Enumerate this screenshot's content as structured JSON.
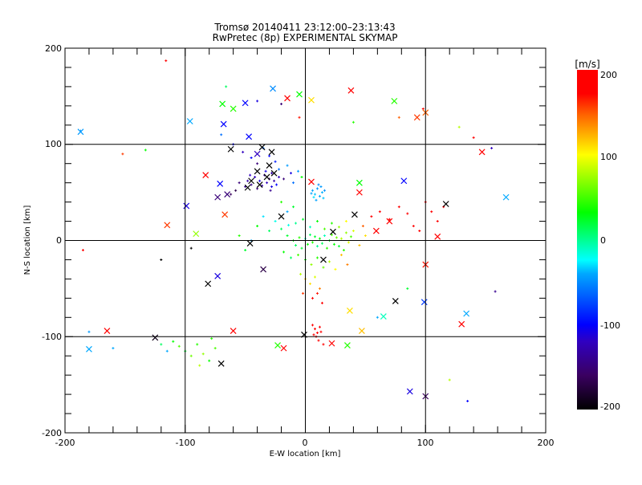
{
  "chart_data": {
    "type": "scatter",
    "title": "Tromsø 20140411 23:12:00–23:13:43",
    "subtitle": "RwPretec (8p) EXPERIMENTAL SKYMAP",
    "xlabel": "E-W location [km]",
    "ylabel": "N-S location [km]",
    "xlim": [
      -200,
      200
    ],
    "ylim": [
      -200,
      200
    ],
    "xticks": [
      "-200",
      "-100",
      "0",
      "100",
      "200"
    ],
    "yticks": [
      "-200",
      "-100",
      "0",
      "100",
      "200"
    ],
    "grid": true,
    "colorbar": {
      "label": "[m/s]",
      "range": [
        -200,
        200
      ],
      "ticks": [
        "200",
        "100",
        "0",
        "-100",
        "-200"
      ]
    },
    "series": [
      {
        "name": "plus",
        "points": [
          [
            -116,
            187,
            200
          ],
          [
            -187,
            114,
            -45
          ],
          [
            -152,
            90,
            160
          ],
          [
            -133,
            94,
            30
          ],
          [
            -66,
            160,
            10
          ],
          [
            -40,
            145,
            -110
          ],
          [
            -20,
            142,
            -150
          ],
          [
            -5,
            128,
            170
          ],
          [
            40,
            123,
            40
          ],
          [
            78,
            128,
            150
          ],
          [
            98,
            137,
            190
          ],
          [
            128,
            118,
            80
          ],
          [
            140,
            107,
            200
          ],
          [
            155,
            96,
            -120
          ],
          [
            -70,
            110,
            -60
          ],
          [
            -60,
            100,
            -100
          ],
          [
            -52,
            92,
            -120
          ],
          [
            -45,
            86,
            -100
          ],
          [
            -40,
            80,
            -150
          ],
          [
            -35,
            96,
            -60
          ],
          [
            -30,
            88,
            -100
          ],
          [
            -28,
            70,
            -130
          ],
          [
            -25,
            82,
            -90
          ],
          [
            -22,
            74,
            -60
          ],
          [
            -18,
            64,
            -150
          ],
          [
            -15,
            78,
            -45
          ],
          [
            -12,
            70,
            -110
          ],
          [
            -10,
            60,
            -60
          ],
          [
            -6,
            72,
            -45
          ],
          [
            -3,
            66,
            30
          ],
          [
            -48,
            62,
            -130
          ],
          [
            -45,
            58,
            -140
          ],
          [
            -42,
            66,
            -120
          ],
          [
            -40,
            54,
            -150
          ],
          [
            -38,
            62,
            -110
          ],
          [
            -36,
            57,
            -130
          ],
          [
            -34,
            68,
            -140
          ],
          [
            -32,
            60,
            -120
          ],
          [
            -30,
            64,
            -150
          ],
          [
            -28,
            56,
            -110
          ],
          [
            -26,
            62,
            -130
          ],
          [
            -24,
            58,
            -100
          ],
          [
            -50,
            56,
            -140
          ],
          [
            -46,
            68,
            -120
          ],
          [
            -33,
            72,
            -110
          ],
          [
            -29,
            52,
            -140
          ],
          [
            -22,
            66,
            -120
          ],
          [
            -55,
            60,
            -150
          ],
          [
            -58,
            52,
            -170
          ],
          [
            -62,
            48,
            -160
          ],
          [
            6,
            52,
            -40
          ],
          [
            8,
            48,
            -35
          ],
          [
            10,
            54,
            -45
          ],
          [
            12,
            46,
            -40
          ],
          [
            14,
            50,
            -38
          ],
          [
            9,
            42,
            -42
          ],
          [
            11,
            58,
            -50
          ],
          [
            7,
            45,
            -30
          ],
          [
            13,
            56,
            -45
          ],
          [
            15,
            44,
            -35
          ],
          [
            5,
            49,
            -40
          ],
          [
            16,
            52,
            -48
          ],
          [
            -20,
            40,
            40
          ],
          [
            -15,
            30,
            -40
          ],
          [
            -10,
            35,
            20
          ],
          [
            -25,
            20,
            -20
          ],
          [
            -30,
            10,
            10
          ],
          [
            -35,
            25,
            -30
          ],
          [
            -40,
            15,
            30
          ],
          [
            -45,
            0,
            -40
          ],
          [
            -50,
            -10,
            20
          ],
          [
            -55,
            5,
            40
          ],
          [
            -15,
            5,
            20
          ],
          [
            -10,
            0,
            30
          ],
          [
            -8,
            -5,
            10
          ],
          [
            -5,
            3,
            40
          ],
          [
            -3,
            -8,
            20
          ],
          [
            0,
            2,
            -10
          ],
          [
            2,
            -4,
            30
          ],
          [
            4,
            6,
            10
          ],
          [
            6,
            -2,
            40
          ],
          [
            8,
            4,
            20
          ],
          [
            10,
            -6,
            0
          ],
          [
            12,
            2,
            30
          ],
          [
            14,
            -3,
            10
          ],
          [
            16,
            5,
            -10
          ],
          [
            18,
            -8,
            40
          ],
          [
            20,
            0,
            20
          ],
          [
            22,
            6,
            50
          ],
          [
            24,
            -4,
            30
          ],
          [
            26,
            3,
            60
          ],
          [
            28,
            -6,
            20
          ],
          [
            30,
            2,
            80
          ],
          [
            32,
            -10,
            40
          ],
          [
            34,
            8,
            70
          ],
          [
            36,
            -2,
            90
          ],
          [
            38,
            4,
            50
          ],
          [
            -18,
            -12,
            30
          ],
          [
            -12,
            -18,
            10
          ],
          [
            -6,
            -15,
            50
          ],
          [
            0,
            -20,
            30
          ],
          [
            5,
            -25,
            70
          ],
          [
            10,
            -18,
            40
          ],
          [
            15,
            -28,
            60
          ],
          [
            20,
            -22,
            80
          ],
          [
            25,
            -30,
            100
          ],
          [
            30,
            -15,
            120
          ],
          [
            35,
            -25,
            140
          ],
          [
            -20,
            12,
            10
          ],
          [
            -14,
            16,
            -20
          ],
          [
            -8,
            18,
            0
          ],
          [
            -2,
            22,
            20
          ],
          [
            4,
            14,
            -10
          ],
          [
            10,
            20,
            30
          ],
          [
            16,
            12,
            50
          ],
          [
            22,
            18,
            40
          ],
          [
            28,
            14,
            70
          ],
          [
            34,
            20,
            100
          ],
          [
            40,
            10,
            90
          ],
          [
            45,
            -5,
            120
          ],
          [
            50,
            5,
            110
          ],
          [
            48,
            15,
            150
          ],
          [
            -4,
            -35,
            80
          ],
          [
            0,
            -40,
            120
          ],
          [
            4,
            -45,
            110
          ],
          [
            8,
            -38,
            90
          ],
          [
            12,
            -50,
            140
          ],
          [
            -2,
            -55,
            160
          ],
          [
            6,
            -60,
            200
          ],
          [
            10,
            -55,
            170
          ],
          [
            14,
            -65,
            190
          ],
          [
            6,
            -88,
            200
          ],
          [
            8,
            -92,
            200
          ],
          [
            10,
            -96,
            190
          ],
          [
            12,
            -90,
            200
          ],
          [
            9,
            -100,
            200
          ],
          [
            11,
            -104,
            200
          ],
          [
            7,
            -98,
            200
          ],
          [
            13,
            -95,
            180
          ],
          [
            15,
            -108,
            200
          ],
          [
            55,
            25,
            200
          ],
          [
            62,
            30,
            190
          ],
          [
            70,
            22,
            200
          ],
          [
            78,
            35,
            200
          ],
          [
            85,
            28,
            190
          ],
          [
            90,
            15,
            200
          ],
          [
            95,
            10,
            200
          ],
          [
            100,
            40,
            180
          ],
          [
            105,
            30,
            200
          ],
          [
            110,
            20,
            190
          ],
          [
            115,
            35,
            200
          ],
          [
            -120,
            -20,
            -200
          ],
          [
            -95,
            -8,
            -200
          ],
          [
            -185,
            -10,
            200
          ],
          [
            -180,
            -95,
            -45
          ],
          [
            -160,
            -112,
            -40
          ],
          [
            -110,
            -105,
            30
          ],
          [
            -105,
            -110,
            50
          ],
          [
            -100,
            -115,
            20
          ],
          [
            -95,
            -120,
            60
          ],
          [
            -90,
            -108,
            40
          ],
          [
            -85,
            -118,
            70
          ],
          [
            -80,
            -125,
            30
          ],
          [
            -75,
            -112,
            50
          ],
          [
            -115,
            -115,
            -40
          ],
          [
            -120,
            -108,
            10
          ],
          [
            -88,
            -130,
            80
          ],
          [
            -78,
            -102,
            40
          ],
          [
            120,
            -145,
            80
          ],
          [
            135,
            -167,
            -100
          ],
          [
            158,
            -53,
            -140
          ],
          [
            85,
            -50,
            20
          ],
          [
            60,
            -80,
            -40
          ]
        ]
      },
      {
        "name": "cross",
        "points": [
          [
            -187,
            113,
            -45
          ],
          [
            -96,
            124,
            -40
          ],
          [
            -69,
            142,
            30
          ],
          [
            -60,
            137,
            40
          ],
          [
            -50,
            143,
            -100
          ],
          [
            -27,
            158,
            -50
          ],
          [
            -15,
            148,
            190
          ],
          [
            -5,
            152,
            30
          ],
          [
            5,
            146,
            110
          ],
          [
            38,
            156,
            190
          ],
          [
            74,
            145,
            40
          ],
          [
            93,
            128,
            160
          ],
          [
            100,
            133,
            150
          ],
          [
            -68,
            121,
            -100
          ],
          [
            -47,
            108,
            -100
          ],
          [
            -62,
            95,
            -200
          ],
          [
            -36,
            97,
            -200
          ],
          [
            -28,
            92,
            -200
          ],
          [
            -40,
            90,
            -120
          ],
          [
            -45,
            62,
            -200
          ],
          [
            -38,
            58,
            -200
          ],
          [
            -32,
            66,
            -200
          ],
          [
            -26,
            70,
            -200
          ],
          [
            -48,
            55,
            -200
          ],
          [
            -40,
            72,
            -200
          ],
          [
            -30,
            78,
            -200
          ],
          [
            -83,
            68,
            200
          ],
          [
            -71,
            59,
            -100
          ],
          [
            -73,
            45,
            -150
          ],
          [
            -65,
            48,
            -150
          ],
          [
            -99,
            36,
            -110
          ],
          [
            -115,
            16,
            160
          ],
          [
            -91,
            7,
            70
          ],
          [
            -67,
            27,
            160
          ],
          [
            -46,
            -3,
            -200
          ],
          [
            -81,
            -45,
            -200
          ],
          [
            -73,
            -37,
            -110
          ],
          [
            -165,
            -94,
            200
          ],
          [
            -180,
            -113,
            -40
          ],
          [
            -125,
            -101,
            -190
          ],
          [
            -70,
            -128,
            -200
          ],
          [
            -60,
            -94,
            200
          ],
          [
            -23,
            -109,
            40
          ],
          [
            -18,
            -112,
            200
          ],
          [
            -1,
            -98,
            -200
          ],
          [
            22,
            -107,
            200
          ],
          [
            35,
            -109,
            40
          ],
          [
            37,
            -73,
            110
          ],
          [
            47,
            -94,
            120
          ],
          [
            65,
            -79,
            -10
          ],
          [
            75,
            -63,
            -200
          ],
          [
            99,
            -64,
            -80
          ],
          [
            100,
            -25,
            170
          ],
          [
            87,
            -157,
            -110
          ],
          [
            100,
            -162,
            -160
          ],
          [
            130,
            -87,
            200
          ],
          [
            134,
            -76,
            -40
          ],
          [
            147,
            92,
            190
          ],
          [
            167,
            45,
            -40
          ],
          [
            117,
            38,
            -200
          ],
          [
            110,
            4,
            200
          ],
          [
            70,
            20,
            200
          ],
          [
            59,
            10,
            190
          ],
          [
            45,
            60,
            30
          ],
          [
            45,
            50,
            200
          ],
          [
            5,
            61,
            200
          ],
          [
            82,
            62,
            -100
          ],
          [
            41,
            27,
            -200
          ],
          [
            23,
            9,
            -200
          ],
          [
            -20,
            25,
            -200
          ],
          [
            15,
            -20,
            -200
          ],
          [
            -35,
            -30,
            -170
          ]
        ]
      }
    ]
  }
}
